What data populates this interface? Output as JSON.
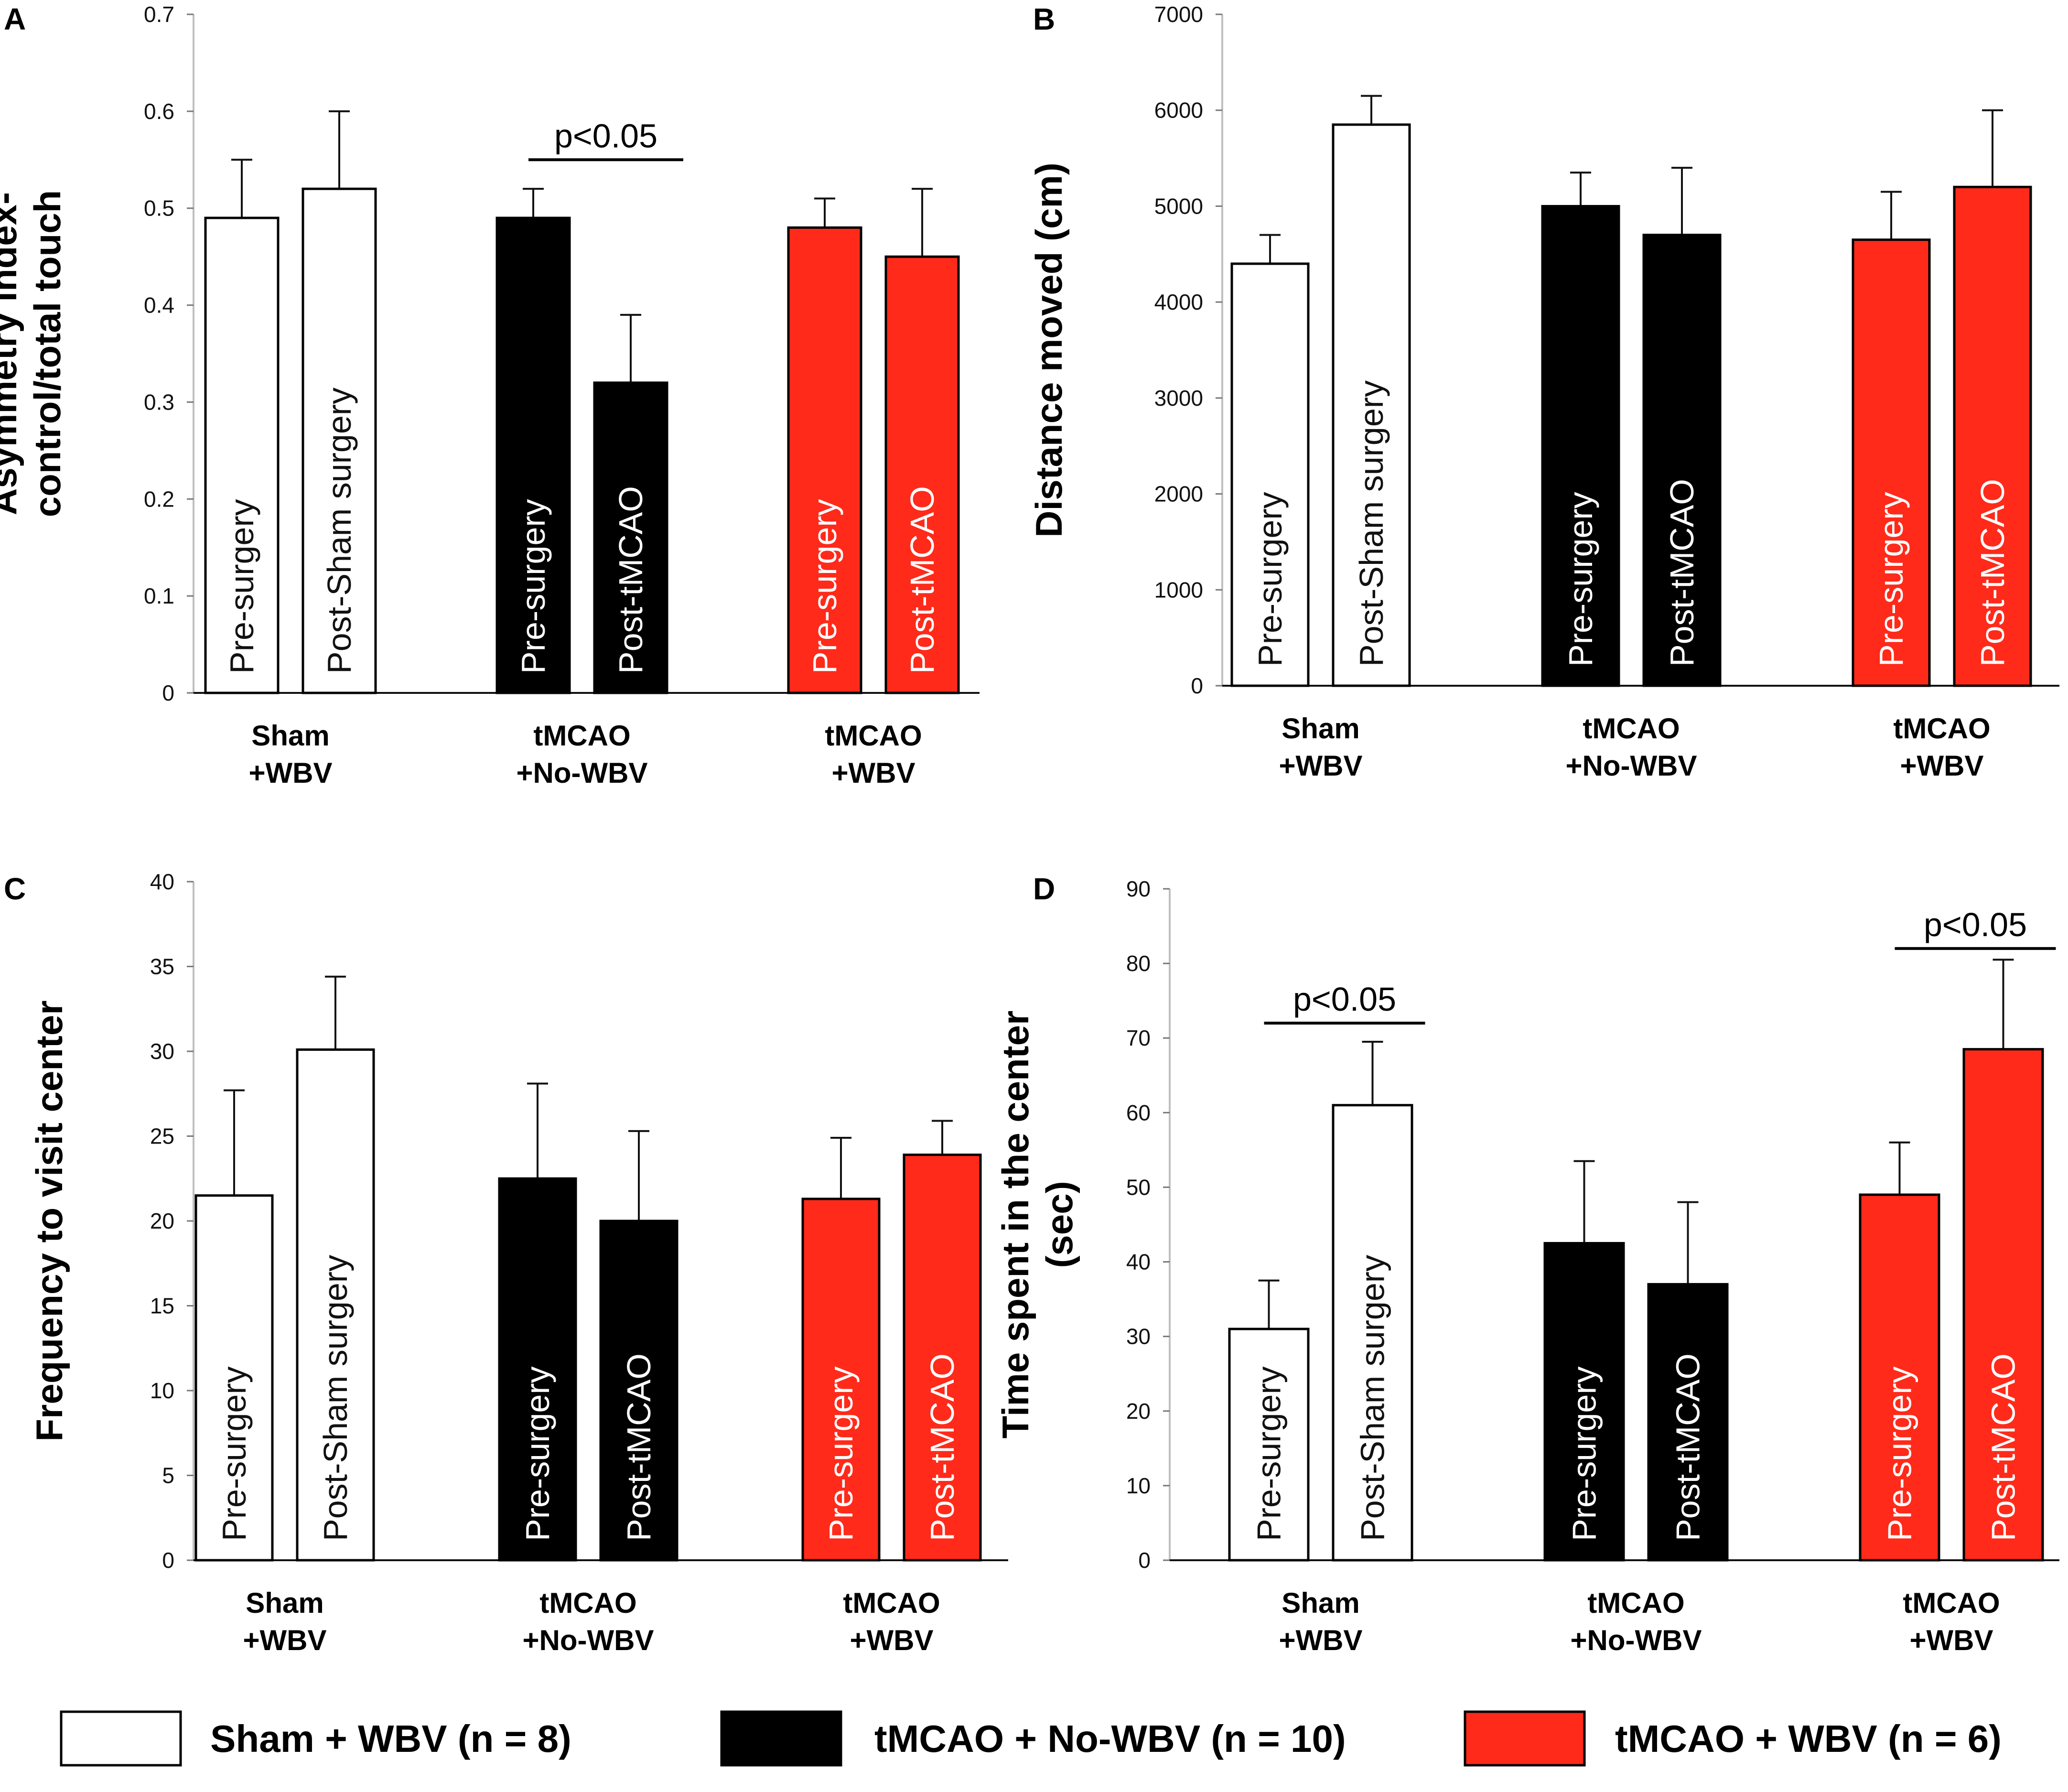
{
  "legend": [
    {
      "label": "Sham + WBV (n = 8)",
      "color": "#ffffff"
    },
    {
      "label": "tMCAO + No-WBV (n = 10)",
      "color": "#000000"
    },
    {
      "label": "tMCAO + WBV (n = 6)",
      "color": "#ff2a1a"
    }
  ],
  "chart_data": [
    {
      "type": "bar",
      "panel": "A",
      "ylabel": [
        "Asymmetry index-",
        "control/total touch"
      ],
      "ylim": [
        0,
        0.7
      ],
      "yticks": [
        "0",
        "0.1",
        "0.2",
        "0.3",
        "0.4",
        "0.5",
        "0.6",
        "0.7"
      ],
      "groups": [
        {
          "label": [
            "Sham",
            "+WBV"
          ],
          "color": "#ffffff",
          "bars": [
            {
              "label": "Pre-surgery",
              "value": 0.49,
              "error": 0.06
            },
            {
              "label": "Post-Sham surgery",
              "value": 0.52,
              "error": 0.08
            }
          ]
        },
        {
          "label": [
            "tMCAO",
            "+No-WBV"
          ],
          "color": "#000000",
          "bars": [
            {
              "label": "Pre-surgery",
              "value": 0.49,
              "error": 0.03
            },
            {
              "label": "Post-tMCAO",
              "value": 0.32,
              "error": 0.07
            }
          ]
        },
        {
          "label": [
            "tMCAO",
            "+WBV"
          ],
          "color": "#ff2a1a",
          "bars": [
            {
              "label": "Pre-surgery",
              "value": 0.48,
              "error": 0.03
            },
            {
              "label": "Post-tMCAO",
              "value": 0.45,
              "error": 0.07
            }
          ]
        }
      ],
      "significance": [
        {
          "group": 1,
          "text": "p<0.05",
          "y": 0.55
        }
      ]
    },
    {
      "type": "bar",
      "panel": "B",
      "ylabel": [
        "Distance moved (cm)"
      ],
      "ylim": [
        0,
        7000
      ],
      "yticks": [
        "0",
        "1000",
        "2000",
        "3000",
        "4000",
        "5000",
        "6000",
        "7000"
      ],
      "groups": [
        {
          "label": [
            "Sham",
            "+WBV"
          ],
          "color": "#ffffff",
          "bars": [
            {
              "label": "Pre-surgery",
              "value": 4400,
              "error": 300
            },
            {
              "label": "Post-Sham surgery",
              "value": 5850,
              "error": 300
            }
          ]
        },
        {
          "label": [
            "tMCAO",
            "+No-WBV"
          ],
          "color": "#000000",
          "bars": [
            {
              "label": "Pre-surgery",
              "value": 5000,
              "error": 350
            },
            {
              "label": "Post-tMCAO",
              "value": 4700,
              "error": 700
            }
          ]
        },
        {
          "label": [
            "tMCAO",
            "+WBV"
          ],
          "color": "#ff2a1a",
          "bars": [
            {
              "label": "Pre-surgery",
              "value": 4650,
              "error": 500
            },
            {
              "label": "Post-tMCAO",
              "value": 5200,
              "error": 800
            }
          ]
        }
      ],
      "significance": []
    },
    {
      "type": "bar",
      "panel": "C",
      "ylabel": [
        "Frequency to visit center"
      ],
      "ylim": [
        0,
        40
      ],
      "yticks": [
        "0",
        "5",
        "10",
        "15",
        "20",
        "25",
        "30",
        "35",
        "40"
      ],
      "groups": [
        {
          "label": [
            "Sham",
            "+WBV"
          ],
          "color": "#ffffff",
          "bars": [
            {
              "label": "Pre-surgery",
              "value": 21.5,
              "error": 6.2
            },
            {
              "label": "Post-Sham surgery",
              "value": 30.1,
              "error": 4.3
            }
          ]
        },
        {
          "label": [
            "tMCAO",
            "+No-WBV"
          ],
          "color": "#000000",
          "bars": [
            {
              "label": "Pre-surgery",
              "value": 22.5,
              "error": 5.6
            },
            {
              "label": "Post-tMCAO",
              "value": 20.0,
              "error": 5.3
            }
          ]
        },
        {
          "label": [
            "tMCAO",
            "+WBV"
          ],
          "color": "#ff2a1a",
          "bars": [
            {
              "label": "Pre-surgery",
              "value": 21.3,
              "error": 3.6
            },
            {
              "label": "Post-tMCAO",
              "value": 23.9,
              "error": 2.0
            }
          ]
        }
      ],
      "significance": []
    },
    {
      "type": "bar",
      "panel": "D",
      "ylabel": [
        "Time spent in the center",
        "(sec)"
      ],
      "ylim": [
        0,
        90
      ],
      "yticks": [
        "0",
        "10",
        "20",
        "30",
        "40",
        "50",
        "60",
        "70",
        "80",
        "90"
      ],
      "groups": [
        {
          "label": [
            "Sham",
            "+WBV"
          ],
          "color": "#ffffff",
          "bars": [
            {
              "label": "Pre-surgery",
              "value": 31,
              "error": 6.5
            },
            {
              "label": "Post-Sham surgery",
              "value": 61,
              "error": 8.5
            }
          ]
        },
        {
          "label": [
            "tMCAO",
            "+No-WBV"
          ],
          "color": "#000000",
          "bars": [
            {
              "label": "Pre-surgery",
              "value": 42.5,
              "error": 11
            },
            {
              "label": "Post-tMCAO",
              "value": 37,
              "error": 11
            }
          ]
        },
        {
          "label": [
            "tMCAO",
            "+WBV"
          ],
          "color": "#ff2a1a",
          "bars": [
            {
              "label": "Pre-surgery",
              "value": 49,
              "error": 7
            },
            {
              "label": "Post-tMCAO",
              "value": 68.5,
              "error": 12
            }
          ]
        }
      ],
      "significance": [
        {
          "group": 0,
          "text": "p<0.05",
          "y": 72
        },
        {
          "group": 2,
          "text": "p<0.05",
          "y": 82
        }
      ]
    }
  ]
}
